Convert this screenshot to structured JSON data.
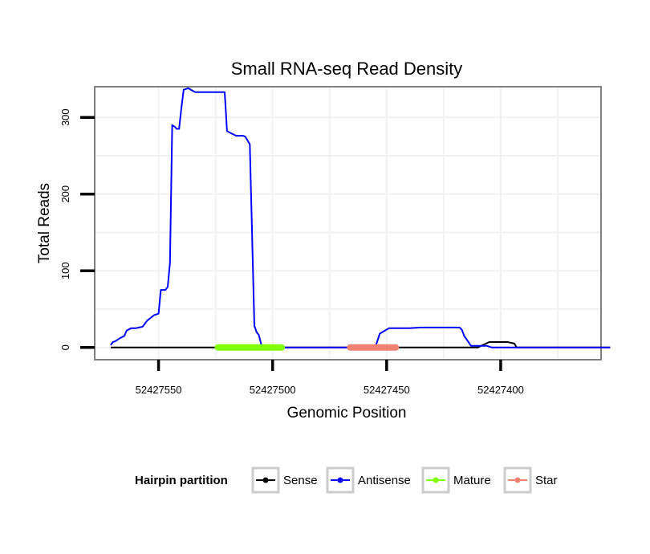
{
  "chart_data": {
    "type": "line",
    "title": "Small RNA-seq Read Density",
    "xlabel": "Genomic Position",
    "ylabel": "Total Reads",
    "x_reversed": true,
    "xlim": [
      52427578,
      52427356
    ],
    "ylim": [
      -16,
      340
    ],
    "x_ticks": [
      52427550,
      52427500,
      52427450,
      52427400
    ],
    "x_tick_labels": [
      "52427550",
      "52427500",
      "52427450",
      "52427400"
    ],
    "y_ticks": [
      0,
      100,
      200,
      300
    ],
    "y_tick_labels": [
      "0",
      "100",
      "200",
      "300"
    ],
    "grid": true,
    "legend": {
      "title": "Hairpin partition",
      "position": "bottom",
      "entries": [
        {
          "label": "Sense",
          "color": "#000000"
        },
        {
          "label": "Antisense",
          "color": "#0000ff"
        },
        {
          "label": "Mature",
          "color": "#7fff00"
        },
        {
          "label": "Star",
          "color": "#f08070"
        }
      ]
    },
    "series": [
      {
        "name": "Sense",
        "color": "#000000",
        "x": [
          52427571,
          52427470,
          52427410,
          52427405,
          52427399,
          52427397,
          52427394,
          52427393,
          52427368,
          52427352
        ],
        "y": [
          0,
          0,
          0,
          7,
          7,
          7,
          5,
          0,
          0,
          0
        ]
      },
      {
        "name": "Antisense",
        "color": "#0000ff",
        "x": [
          52427571,
          52427570,
          52427569,
          52427567,
          52427565,
          52427564,
          52427562,
          52427560,
          52427557,
          52427555,
          52427552,
          52427550,
          52427549,
          52427548,
          52427547,
          52427546,
          52427545,
          52427544,
          52427543,
          52427542,
          52427541,
          52427540,
          52427539,
          52427537,
          52427534,
          52427532,
          52427521,
          52427520,
          52427516,
          52427513,
          52427512,
          52427510,
          52427508,
          52427507,
          52427506,
          52427505,
          52427503,
          52427500,
          52427497,
          52427496,
          52427494,
          52427491,
          52427489,
          52427487,
          52427485,
          52427479,
          52427477,
          52427475,
          52427459,
          52427457,
          52427455,
          52427453,
          52427449,
          52427441,
          52427440,
          52427435,
          52427432,
          52427431,
          52427430,
          52427418,
          52427417,
          52427416,
          52427413,
          52427411,
          52427406,
          52427404,
          52427368,
          52427352
        ],
        "y": [
          3,
          7,
          8,
          12,
          15,
          22,
          25,
          25,
          27,
          35,
          42,
          44,
          75,
          75,
          75,
          79,
          110,
          290,
          288,
          285,
          285,
          312,
          336,
          338,
          333,
          333,
          333,
          282,
          276,
          276,
          275,
          265,
          28,
          20,
          16,
          4,
          0,
          0,
          0,
          0,
          0,
          0,
          0,
          0,
          0,
          0,
          0,
          0,
          0,
          0,
          0,
          18,
          25,
          25,
          25,
          26,
          26,
          26,
          26,
          26,
          23,
          15,
          2,
          2,
          2,
          0,
          0,
          0
        ]
      }
    ],
    "segments": [
      {
        "name": "Mature",
        "color": "#7fff00",
        "x_start": 52427524,
        "x_end": 52427496,
        "y": 0
      },
      {
        "name": "Star",
        "color": "#f08070",
        "x_start": 52427466,
        "x_end": 52427446,
        "y": 0
      }
    ]
  }
}
